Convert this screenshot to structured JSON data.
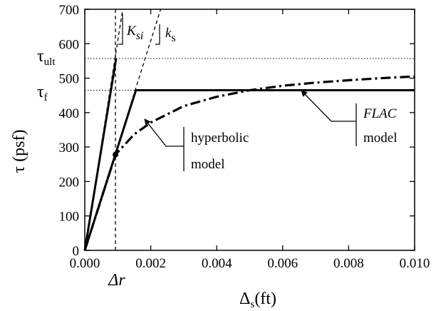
{
  "chart_data": {
    "type": "line",
    "title": "",
    "xlabel": "Δ",
    "xlabel_sub": "s",
    "xlabel_unit": "(ft)",
    "ylabel": "τ (psf)",
    "xlim": [
      0,
      0.01
    ],
    "ylim": [
      0,
      700
    ],
    "x_ticks": [
      0,
      0.002,
      0.004,
      0.006,
      0.008,
      0.01
    ],
    "x_tick_labels": [
      "0.000",
      "0.002",
      "0.004",
      "0.006",
      "0.008",
      "0.010"
    ],
    "y_ticks": [
      0,
      100,
      200,
      300,
      400,
      500,
      600,
      700
    ],
    "y_tick_labels": [
      "0",
      "100",
      "200",
      "300",
      "400",
      "500",
      "600",
      "700"
    ],
    "grid": false,
    "tau_ult": 557,
    "tau_f": 465,
    "delta_r": 0.00093,
    "series": [
      {
        "style": "solid",
        "x": [
          0,
          0.00095
        ],
        "y": [
          0,
          557
        ]
      },
      {
        "style": "solid",
        "x": [
          0,
          0.00155,
          0.01
        ],
        "y": [
          0,
          465,
          465
        ]
      },
      {
        "style": "dashdot",
        "x": [
          0,
          0.00093,
          0.0015,
          0.002,
          0.003,
          0.004,
          0.005,
          0.006,
          0.007,
          0.008,
          0.009,
          0.01
        ],
        "y": [
          0,
          278,
          337,
          371,
          419,
          446,
          465,
          478,
          487,
          494,
          500,
          505
        ]
      },
      {
        "style": "dashed",
        "x": [
          0,
          0.00115
        ],
        "y": [
          0,
          700
        ]
      },
      {
        "style": "dashed",
        "x": [
          0,
          0.0023
        ],
        "y": [
          0,
          700
        ]
      }
    ],
    "annotations": {
      "tau_ult_label": "τ",
      "tau_ult_sub": "ult",
      "tau_f_label": "τ",
      "tau_f_sub": "f",
      "delta_r_label": "Δr",
      "ksi_label": "K",
      "ksi_sub": "si",
      "ks_label": "k",
      "ks_sub": "s",
      "hyperbolic_line1": "hyperbolic",
      "hyperbolic_line2": "model",
      "flac_line1": "FLAC",
      "flac_line2": "model"
    }
  }
}
